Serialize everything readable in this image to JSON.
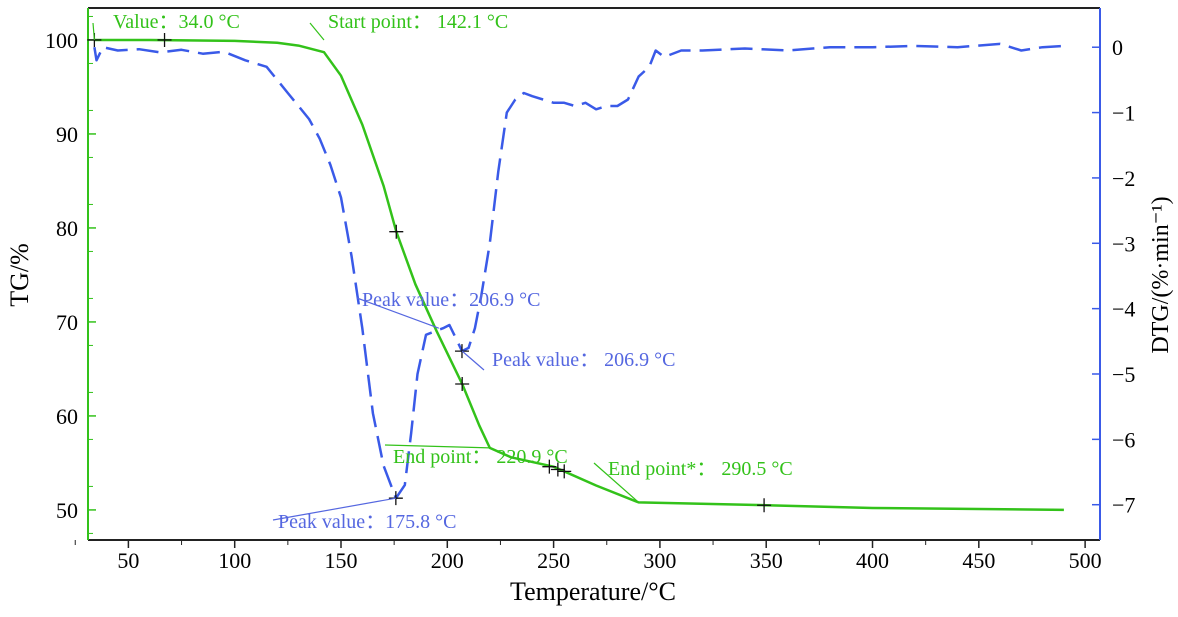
{
  "chart_data": {
    "type": "line",
    "title": "",
    "xlabel": "Temperature/°C",
    "ylabel": "TG/%",
    "y2label": "DTG/(%·min⁻¹)",
    "xlim": [
      31,
      507
    ],
    "ylim": [
      46.8,
      103.4
    ],
    "y2lim": [
      -7.54,
      0.6
    ],
    "xticks": [
      50,
      100,
      150,
      200,
      250,
      300,
      350,
      400,
      450,
      500
    ],
    "yticks": [
      50,
      60,
      70,
      80,
      90,
      100
    ],
    "y2ticks": [
      0,
      -1,
      -2,
      -3,
      -4,
      -5,
      -6,
      -7
    ],
    "grid": false,
    "series": [
      {
        "name": "TG",
        "axis": "left",
        "color": "#33c21a",
        "style": "solid",
        "x": [
          34,
          60,
          100,
          120,
          130,
          142,
          150,
          160,
          170,
          176,
          185,
          195,
          207,
          215,
          220,
          230,
          250,
          270,
          290,
          350,
          400,
          490
        ],
        "y": [
          100,
          100,
          99.9,
          99.7,
          99.4,
          98.7,
          96.2,
          91,
          84.5,
          79.6,
          74,
          69,
          63.4,
          59,
          56.6,
          55.6,
          54.6,
          52.6,
          50.8,
          50.5,
          50.2,
          50.0
        ]
      },
      {
        "name": "DTG",
        "axis": "right",
        "color": "#3a5ae8",
        "style": "dashed",
        "x": [
          34,
          35,
          38,
          45,
          55,
          65,
          75,
          85,
          95,
          105,
          115,
          120,
          125,
          130,
          135,
          140,
          145,
          150,
          155,
          160,
          165,
          170,
          175.8,
          180,
          183,
          186,
          190,
          194,
          198,
          201,
          204,
          206.9,
          210,
          213,
          216,
          220,
          224,
          228,
          232,
          236,
          240,
          245,
          250,
          255,
          260,
          265,
          270,
          275,
          280,
          285,
          290,
          295,
          298,
          302,
          310,
          320,
          340,
          360,
          380,
          400,
          420,
          440,
          460,
          470,
          480,
          490
        ],
        "y": [
          0,
          -0.2,
          0,
          -0.05,
          -0.03,
          -0.08,
          -0.04,
          -0.1,
          -0.07,
          -0.2,
          -0.3,
          -0.5,
          -0.7,
          -0.9,
          -1.1,
          -1.4,
          -1.8,
          -2.3,
          -3.2,
          -4.3,
          -5.6,
          -6.4,
          -6.9,
          -6.7,
          -5.9,
          -5.0,
          -4.4,
          -4.35,
          -4.3,
          -4.25,
          -4.45,
          -4.65,
          -4.6,
          -4.3,
          -3.8,
          -3.0,
          -1.9,
          -1.0,
          -0.8,
          -0.7,
          -0.75,
          -0.8,
          -0.85,
          -0.85,
          -0.9,
          -0.85,
          -0.95,
          -0.9,
          -0.9,
          -0.8,
          -0.45,
          -0.3,
          -0.05,
          -0.15,
          -0.05,
          -0.05,
          -0.02,
          -0.05,
          0,
          0,
          0.02,
          0,
          0.05,
          -0.05,
          0,
          0.02
        ]
      }
    ],
    "markers": [
      {
        "series": "TG",
        "x": 34,
        "y": 100
      },
      {
        "series": "TG",
        "x": 67,
        "y": 100
      },
      {
        "series": "TG",
        "x": 176,
        "y": 79.6
      },
      {
        "series": "TG",
        "x": 207,
        "y": 63.4
      },
      {
        "series": "TG",
        "x": 248,
        "y": 54.6
      },
      {
        "series": "TG",
        "x": 252,
        "y": 54.3
      },
      {
        "series": "TG",
        "x": 255,
        "y": 54.1
      },
      {
        "series": "TG",
        "x": 349,
        "y": 50.5
      },
      {
        "series": "DTG",
        "x": 175.8,
        "y": -6.9
      },
      {
        "series": "DTG",
        "x": 206.9,
        "y": -4.65
      }
    ],
    "annotations": [
      {
        "text": "Value：34.0 °C",
        "color": "#33c21a",
        "x": 34,
        "y": 100,
        "axis": "left"
      },
      {
        "text": "Start point：  142.1 °C",
        "color": "#33c21a",
        "x": 142,
        "y": 100,
        "axis": "left"
      },
      {
        "text": "Peak value：206.9 °C",
        "color": "#5567e0",
        "x": 196,
        "y": -4.3,
        "axis": "right"
      },
      {
        "text": "Peak value：  206.9 °C",
        "color": "#5567e0",
        "x": 207,
        "y": -4.65,
        "axis": "right"
      },
      {
        "text": "End point：  220.9 °C",
        "color": "#33c21a",
        "x": 220,
        "y": 56.6,
        "axis": "left"
      },
      {
        "text": "End point*：  290.5 °C",
        "color": "#33c21a",
        "x": 290,
        "y": 50.8,
        "axis": "left"
      },
      {
        "text": "Peak value：175.8 °C",
        "color": "#5567e0",
        "x": 175.8,
        "y": -6.9,
        "axis": "right"
      }
    ]
  }
}
